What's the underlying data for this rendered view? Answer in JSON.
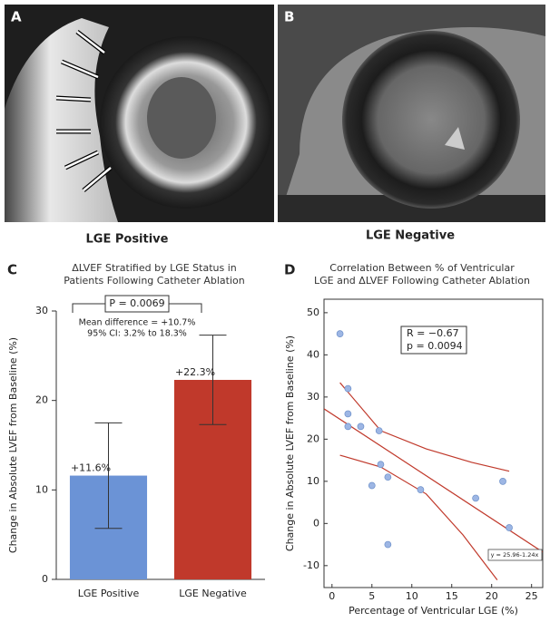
{
  "figure": {
    "panel_labels": [
      "A",
      "B",
      "C",
      "D"
    ],
    "image_captions": [
      "LGE Positive",
      "LGE Negative"
    ]
  },
  "chart_data": [
    {
      "type": "bar",
      "title": [
        "ΔLVEF Stratified by LGE Status in",
        "Patients Following Catheter Ablation"
      ],
      "ylabel": "Change in Absolute LVEF from Baseline (%)",
      "categories": [
        "LGE Positive",
        "LGE Negative"
      ],
      "values": [
        11.6,
        22.3
      ],
      "value_labels": [
        "+11.6%",
        "+22.3%"
      ],
      "errors": [
        5.9,
        5.0
      ],
      "colors": [
        "#6b93d6",
        "#c0392b"
      ],
      "ylim": [
        0,
        30
      ],
      "yticks": [
        0,
        10,
        20,
        30
      ],
      "annotations": [
        "P = 0.0069",
        "Mean difference = +10.7%",
        "95% CI: 3.2% to 18.3%"
      ]
    },
    {
      "type": "scatter",
      "title": [
        "Correlation Between % of Ventricular",
        "LGE and ΔLVEF Following Catheter Ablation"
      ],
      "xlabel": "Percentage of Ventricular LGE (%)",
      "ylabel": "Change in Absolute LVEF from Baseline (%)",
      "x": [
        1,
        2,
        2,
        2,
        3.6,
        5.9,
        6.1,
        7,
        5,
        11.1,
        18,
        21.4,
        22.2,
        7
      ],
      "values": [
        45,
        32,
        26,
        23,
        23,
        22,
        14,
        11,
        9,
        8,
        6,
        10,
        -1,
        -5
      ],
      "color": "#9db6e4",
      "fit": {
        "label": "y = 25.96-1.24x",
        "intercept": 25.96,
        "slope": -1.24,
        "color": "#c0392b"
      },
      "bands": [
        {
          "x": [
            1,
            6.1,
            11.8,
            17.5,
            22.2
          ],
          "values": [
            33.4,
            22,
            17.7,
            14.5,
            12.4
          ]
        },
        {
          "x": [
            1,
            6.1,
            11.8,
            16.4,
            20.7
          ],
          "values": [
            16.2,
            13.4,
            7,
            -2.7,
            -13.4
          ]
        }
      ],
      "annotations": [
        "R = −0.67",
        "p = 0.0094"
      ],
      "xlim": [
        -1.0,
        26.4
      ],
      "ylim": [
        -15.2,
        53.2
      ],
      "xticks": [
        0,
        5,
        10,
        15,
        20,
        25
      ],
      "yticks": [
        -10,
        0,
        10,
        20,
        30,
        40,
        50
      ]
    }
  ]
}
